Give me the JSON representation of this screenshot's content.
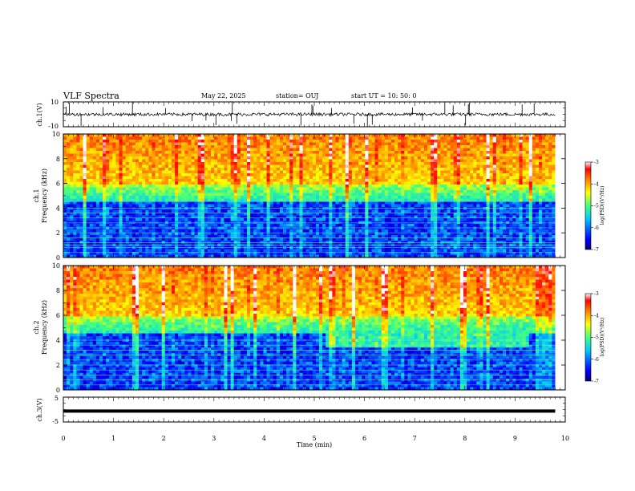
{
  "header": {
    "title": "VLF Spectra",
    "date": "May 22, 2025",
    "station": "station= OUJ",
    "start": "start  UT =   10: 50: 0"
  },
  "chart_data": [
    {
      "id": "ch1-waveform",
      "type": "line",
      "ylabel": "ch.1(V)",
      "ylim": [
        -10,
        10
      ],
      "ytick_labels": [
        "10",
        "-10"
      ],
      "xlim": [
        0,
        10
      ],
      "description_values": {
        "baseline": 0,
        "noise_amplitude": 1.2,
        "spike_amplitude": 10
      }
    },
    {
      "id": "ch1-spectrogram",
      "type": "heatmap",
      "ylabel": "ch.1\nFrequency (kHz)",
      "ylabel_line1": "ch.1",
      "ylabel_line2": "Frequency (kHz)",
      "ylim": [
        0,
        10
      ],
      "yticks": [
        0,
        2,
        4,
        6,
        8,
        10
      ],
      "ytick_labels": [
        "0",
        "2",
        "4",
        "6",
        "8",
        "10"
      ],
      "xlim": [
        0,
        9.8
      ],
      "colorbar": {
        "label": "log(PSD)(V²/Hz)",
        "range": [
          -7,
          -3
        ],
        "ticks": [
          -3,
          -4,
          -5,
          -6,
          -7
        ],
        "tick_labels": [
          "-3",
          "-4",
          "-5",
          "-6",
          "-7"
        ]
      },
      "hum_lines_khz": [
        0.4,
        0.8,
        1.0,
        1.2,
        1.6,
        2.0,
        2.4,
        2.8,
        3.2,
        3.6,
        4.0,
        4.5
      ]
    },
    {
      "id": "ch2-spectrogram",
      "type": "heatmap",
      "ylabel_line1": "ch.2",
      "ylabel_line2": "Frequency (kHz)",
      "ylim": [
        0,
        10
      ],
      "yticks": [
        0,
        2,
        4,
        6,
        8,
        10
      ],
      "ytick_labels": [
        "0",
        "2",
        "4",
        "6",
        "8",
        "10"
      ],
      "xlim": [
        0,
        9.8
      ],
      "colorbar": {
        "label": "log(PSD)(V²/Hz)",
        "range": [
          -7,
          -3
        ],
        "ticks": [
          -3,
          -4,
          -5,
          -6,
          -7
        ],
        "tick_labels": [
          "-3",
          "-4",
          "-5",
          "-6",
          "-7"
        ]
      },
      "band_interval_min": [
        5.2,
        9.3
      ],
      "band_khz": [
        3.5,
        6.5
      ]
    },
    {
      "id": "ch3-waveform",
      "type": "line",
      "ylabel": "ch.3(V)",
      "ylim": [
        -5,
        5
      ],
      "ytick_labels": [
        "5",
        "-5"
      ],
      "xlim": [
        0,
        10
      ],
      "x": [
        0,
        9.8
      ],
      "y": [
        -0.6,
        -0.6
      ]
    }
  ],
  "xaxis": {
    "label": "Time (min)",
    "ticks": [
      0,
      1,
      2,
      3,
      4,
      5,
      6,
      7,
      8,
      9,
      10
    ],
    "tick_labels": [
      "0",
      "1",
      "2",
      "3",
      "4",
      "5",
      "6",
      "7",
      "8",
      "9",
      "10"
    ]
  },
  "colors": {
    "colormap": [
      "#00007f",
      "#0000ff",
      "#007fff",
      "#00ffff",
      "#7fff7f",
      "#ffff00",
      "#ff7f00",
      "#ff0000",
      "#7f0000"
    ]
  }
}
